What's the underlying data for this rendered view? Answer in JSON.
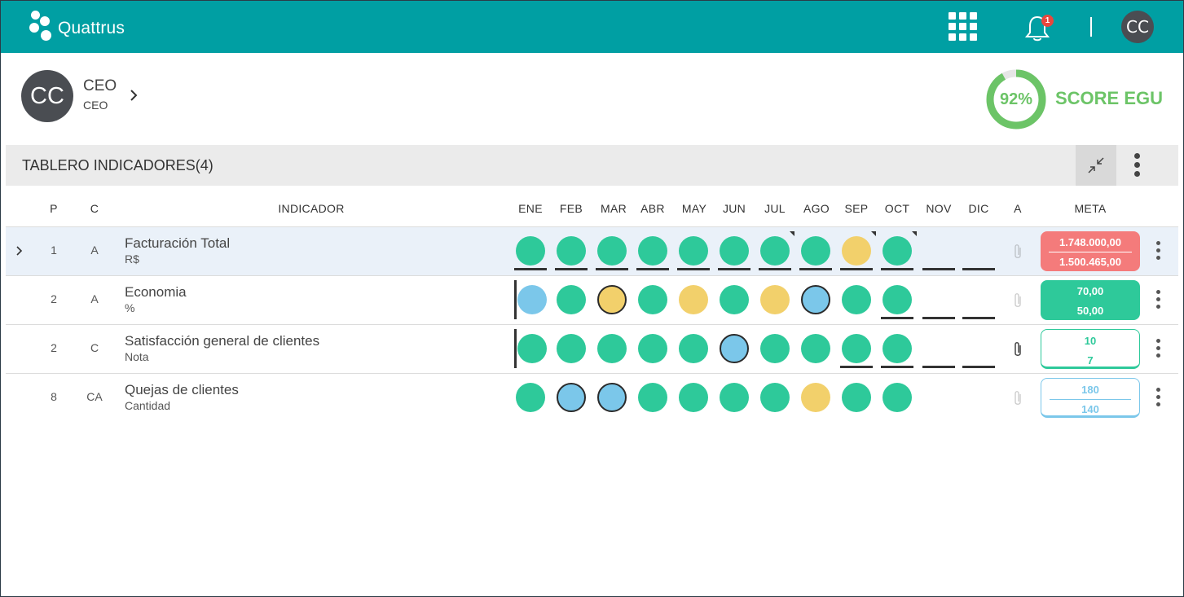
{
  "app": {
    "brand": "Quattrus",
    "notification_count": "1",
    "user_initials": "CC"
  },
  "profile": {
    "initials": "CC",
    "name": "CEO",
    "role": "CEO"
  },
  "score": {
    "percent": "92%",
    "value": 0.92,
    "label": "SCORE EGU",
    "color": "#6cc467"
  },
  "panel": {
    "title": "TABLERO INDICADORES(4)"
  },
  "columns": {
    "p": "P",
    "c": "C",
    "indicator": "INDICADOR",
    "a": "A",
    "meta": "META",
    "months": [
      "ENE",
      "FEB",
      "MAR",
      "ABR",
      "MAY",
      "JUN",
      "JUL",
      "AGO",
      "SEP",
      "OCT",
      "NOV",
      "DIC"
    ]
  },
  "colors": {
    "green": "#2ec99a",
    "yellow": "#f2d06b",
    "blue": "#7bc7ea",
    "red": "#f47b7b",
    "teal": "#009fa3"
  },
  "rows": [
    {
      "p": "1",
      "c": "A",
      "name": "Facturación Total",
      "unit": "R$",
      "meta": {
        "target": "1.748.000,00",
        "actual": "1.500.465,00",
        "style": "red"
      }
    },
    {
      "p": "2",
      "c": "A",
      "name": "Economia",
      "unit": "%",
      "meta": {
        "target": "70,00",
        "actual": "50,00",
        "style": "green"
      }
    },
    {
      "p": "2",
      "c": "C",
      "name": "Satisfacción general de clientes",
      "unit": "Nota",
      "meta": {
        "target": "10",
        "actual": "7",
        "style": "outline-green"
      }
    },
    {
      "p": "8",
      "c": "CA",
      "name": "Quejas de clientes",
      "unit": "Cantidad",
      "meta": {
        "target": "180",
        "actual": "140",
        "style": "outline-blue"
      }
    }
  ]
}
